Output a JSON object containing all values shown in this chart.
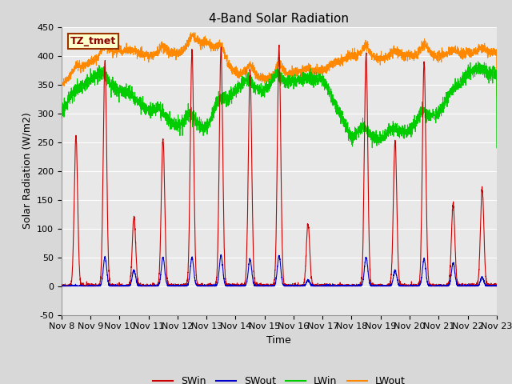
{
  "title": "4-Band Solar Radiation",
  "ylabel": "Solar Radiation (W/m2)",
  "xlabel": "Time",
  "ylim": [
    -50,
    450
  ],
  "xlim": [
    0,
    360
  ],
  "x_tick_positions": [
    0,
    24,
    48,
    72,
    96,
    120,
    144,
    168,
    192,
    216,
    240,
    264,
    288,
    312,
    336,
    360
  ],
  "x_tick_labels": [
    "Nov 8",
    "Nov 9",
    "Nov 10",
    "Nov 11",
    "Nov 12",
    "Nov 13",
    "Nov 14",
    "Nov 15",
    "Nov 16",
    "Nov 17",
    "Nov 18",
    "Nov 19",
    "Nov 20",
    "Nov 21",
    "Nov 22",
    "Nov 23"
  ],
  "colors": {
    "SWin": "#cc0000",
    "SWout": "#0000cc",
    "LWin": "#00cc00",
    "LWout": "#ff8800"
  },
  "annotation_text": "TZ_tmet",
  "annotation_bg": "#ffffcc",
  "annotation_border": "#993300",
  "plot_bg": "#e8e8e8",
  "grid_color": "#ffffff",
  "title_fontsize": 11,
  "axis_fontsize": 9,
  "tick_fontsize": 8,
  "days": 15,
  "points_per_day": 240,
  "SWin_peaks": [
    260,
    390,
    120,
    255,
    410,
    415,
    375,
    415,
    108,
    0,
    402,
    252,
    390,
    142,
    170
  ],
  "SWout_peaks": [
    0,
    50,
    28,
    50,
    50,
    53,
    46,
    53,
    10,
    0,
    50,
    27,
    47,
    40,
    15
  ],
  "LWin_base": [
    300,
    360,
    340,
    305,
    278,
    275,
    340,
    340,
    355,
    360,
    258,
    255,
    270,
    300,
    370
  ],
  "LWout_base": [
    350,
    390,
    410,
    400,
    405,
    425,
    370,
    360,
    370,
    375,
    400,
    395,
    400,
    400,
    405
  ]
}
